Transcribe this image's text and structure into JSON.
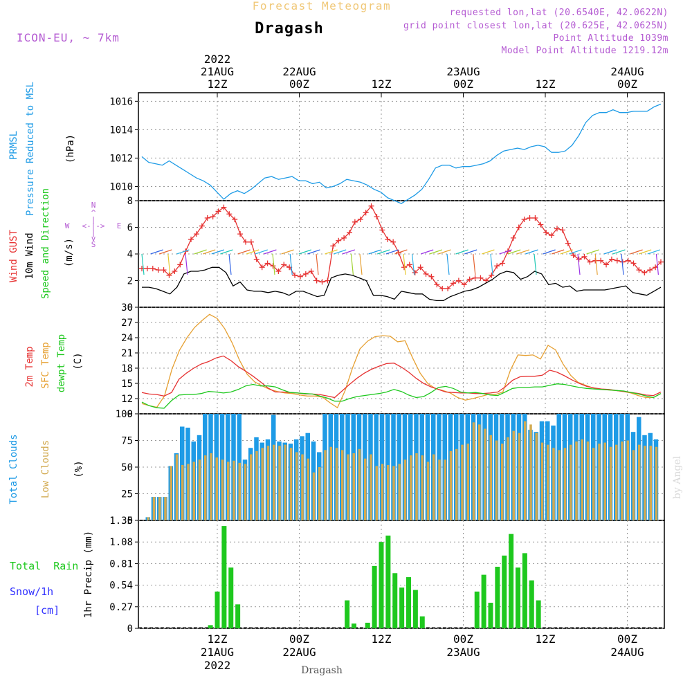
{
  "header": {
    "product": "Forecast Meteogram",
    "location": "Dragash",
    "model": "ICON-EU, ~ 7km",
    "requested": "requested lon,lat (20.6540E, 42.0622N)",
    "grid": "grid point closest lon,lat (20.625E, 42.0625N)",
    "alt": "Point Altitude 1039m",
    "model_alt": "Model Point Altitude 1219.12m",
    "watermark": "by Angel",
    "footer": "Dragash"
  },
  "time_axis": {
    "top_labels": [
      {
        "l1": "2022",
        "l2": "21AUG",
        "l3": "12Z"
      },
      {
        "l1": "",
        "l2": "22AUG",
        "l3": "00Z"
      },
      {
        "l1": "",
        "l2": "",
        "l3": "12Z"
      },
      {
        "l1": "",
        "l2": "23AUG",
        "l3": "00Z"
      },
      {
        "l1": "",
        "l2": "",
        "l3": "12Z"
      },
      {
        "l1": "",
        "l2": "24AUG",
        "l3": "00Z"
      }
    ],
    "bottom_labels": [
      {
        "l1": "12Z",
        "l2": "21AUG",
        "l3": "2022"
      },
      {
        "l1": "00Z",
        "l2": "22AUG",
        "l3": ""
      },
      {
        "l1": "12Z",
        "l2": "",
        "l3": ""
      },
      {
        "l1": "00Z",
        "l2": "23AUG",
        "l3": ""
      },
      {
        "l1": "12Z",
        "l2": "",
        "l3": ""
      },
      {
        "l1": "00Z",
        "l2": "24AUG",
        "l3": ""
      }
    ]
  },
  "panels": {
    "pressure": {
      "label1": "PRMSL",
      "label2": "Pressure Reduced to MSL",
      "unit": "(hPa)"
    },
    "wind": {
      "label_gust": "Wind GUST",
      "label_wind": "10m Wind",
      "label_dir": "Speed and Direction",
      "unit": "(m/s)"
    },
    "compass": {
      "n": "N",
      "s": "S",
      "w": "W",
      "e": "E"
    },
    "temp": {
      "label_2m": "2m Temp",
      "label_sfc": "SFC Temp",
      "label_dew": "dewpt Temp",
      "unit": "(C)"
    },
    "clouds": {
      "label_total": "Total Clouds",
      "label_low": "Low Clouds",
      "unit": "(%)"
    },
    "precip": {
      "label_rain": "Total  Rain",
      "label_snow": "Snow/1h",
      "label_cm": "[cm]",
      "unit": "1hr Precip (mm)"
    }
  },
  "colors": {
    "pressure": "#1e9be6",
    "gust": "#e63232",
    "wind": "#000000",
    "temp2m": "#e63232",
    "sfc": "#e6a032",
    "dew": "#1ec81e",
    "total_cloud": "#1e9be6",
    "low_cloud": "#d2aa50",
    "rain": "#1ec81e",
    "snow": "#3232ff",
    "meta": "#b45ad2"
  },
  "chart_data": [
    {
      "type": "line",
      "title": "PRMSL Pressure Reduced to MSL",
      "ylabel": "(hPa)",
      "ylim": [
        1009,
        1016.6
      ],
      "yticks": [
        1010,
        1012,
        1014,
        1016
      ],
      "x_start_hours": 0,
      "x_end_hours": 64,
      "series": [
        {
          "values": [
            1012.1,
            1011.7,
            1011.6,
            1011.5,
            1011.8,
            1011.5,
            1011.2,
            1010.9,
            1010.6,
            1010.4,
            1010.1,
            1009.6,
            1009.1,
            1009.5,
            1009.7,
            1009.5,
            1009.8,
            1010.2,
            1010.6,
            1010.7,
            1010.5,
            1010.6,
            1010.7,
            1010.4,
            1010.4,
            1010.2,
            1010.3,
            1009.9,
            1010.0,
            1010.2,
            1010.5,
            1010.4,
            1010.3,
            1010.1,
            1009.8,
            1009.6,
            1009.2,
            1009.0,
            1008.8,
            1009.1,
            1009.4,
            1009.8,
            1010.5,
            1011.3,
            1011.5,
            1011.5,
            1011.3,
            1011.4,
            1011.4,
            1011.5,
            1011.6,
            1011.8,
            1012.2,
            1012.5,
            1012.6,
            1012.7,
            1012.6,
            1012.8,
            1012.9,
            1012.8,
            1012.4,
            1012.4,
            1012.5,
            1012.9,
            1013.6,
            1014.5,
            1015.0,
            1015.2,
            1015.2,
            1015.4,
            1015.2,
            1015.2,
            1015.3,
            1015.3,
            1015.3,
            1015.6,
            1015.8
          ]
        }
      ]
    },
    {
      "type": "line",
      "title": "Wind GUST / 10m Wind Speed and Direction",
      "ylabel": "(m/s)",
      "ylim": [
        0,
        8
      ],
      "yticks": [
        0,
        2,
        4,
        6,
        8
      ],
      "x_start_hours": 0,
      "x_end_hours": 64,
      "series": [
        {
          "name": "Wind GUST",
          "values": [
            2.9,
            2.9,
            2.9,
            2.8,
            2.8,
            2.4,
            2.7,
            3.2,
            4.2,
            5.1,
            5.5,
            6.1,
            6.7,
            6.8,
            7.2,
            7.5,
            7.0,
            6.6,
            5.5,
            4.9,
            4.9,
            3.6,
            3.0,
            3.3,
            3.1,
            2.7,
            3.2,
            3.0,
            2.4,
            2.3,
            2.5,
            2.7,
            2.0,
            1.9,
            2.0,
            4.6,
            5.0,
            5.2,
            5.6,
            6.4,
            6.6,
            7.1,
            7.6,
            6.8,
            5.8,
            5.1,
            4.9,
            4.1,
            3.0,
            3.2,
            2.6,
            3.0,
            2.5,
            2.3,
            1.7,
            1.4,
            1.4,
            1.8,
            2.0,
            1.7,
            2.1,
            2.2,
            2.2,
            2.0,
            2.4,
            3.1,
            3.3,
            4.2,
            5.2,
            6.0,
            6.6,
            6.7,
            6.7,
            6.2,
            5.6,
            5.4,
            5.9,
            5.8,
            4.8,
            3.9,
            3.6,
            3.8,
            3.4,
            3.5,
            3.5,
            3.2,
            3.6,
            3.5,
            3.4,
            3.5,
            3.3,
            2.8,
            2.6,
            2.8,
            3.0,
            3.4
          ]
        },
        {
          "name": "10m Wind",
          "values": [
            1.5,
            1.5,
            1.4,
            1.2,
            1.0,
            1.5,
            2.5,
            2.7,
            2.7,
            2.8,
            3.0,
            3.0,
            2.6,
            1.6,
            1.9,
            1.3,
            1.2,
            1.2,
            1.1,
            1.2,
            1.1,
            0.9,
            1.2,
            1.2,
            1.0,
            0.8,
            0.9,
            2.2,
            2.4,
            2.5,
            2.4,
            2.2,
            2.0,
            0.9,
            0.9,
            0.8,
            0.6,
            1.2,
            1.1,
            1.0,
            1.0,
            0.6,
            0.5,
            0.5,
            0.8,
            1.0,
            1.2,
            1.3,
            1.5,
            1.8,
            2.1,
            2.5,
            2.7,
            2.6,
            2.1,
            2.3,
            2.7,
            2.5,
            1.7,
            1.8,
            1.5,
            1.6,
            1.2,
            1.3,
            1.3,
            1.3,
            1.3,
            1.4,
            1.5,
            1.6,
            1.1,
            1.0,
            0.9,
            1.2,
            1.5
          ]
        }
      ]
    },
    {
      "type": "line",
      "title": "2m Temp / SFC Temp / dewpt Temp",
      "ylabel": "(C)",
      "ylim": [
        9,
        30
      ],
      "yticks": [
        9,
        12,
        15,
        18,
        21,
        24,
        27,
        30
      ],
      "x_start_hours": 0,
      "x_end_hours": 64,
      "series": [
        {
          "name": "2m Temp",
          "values": [
            13.2,
            12.9,
            12.8,
            12.5,
            13.2,
            15.8,
            17.0,
            18.0,
            18.8,
            19.3,
            20.0,
            20.4,
            19.5,
            18.3,
            17.4,
            16.4,
            15.3,
            14.1,
            13.3,
            13.3,
            13.2,
            13.1,
            12.9,
            12.9,
            12.8,
            12.5,
            12.2,
            13.5,
            14.8,
            16.0,
            17.0,
            17.8,
            18.4,
            18.9,
            19.0,
            18.2,
            17.2,
            16.0,
            15.0,
            14.3,
            13.8,
            13.3,
            13.2,
            13.1,
            13.1,
            13.0,
            13.0,
            13.1,
            13.3,
            14.3,
            15.6,
            16.3,
            16.4,
            16.4,
            16.6,
            17.6,
            17.2,
            16.5,
            15.7,
            15.0,
            14.4,
            14.1,
            13.9,
            13.8,
            13.6,
            13.4,
            13.2,
            13.0,
            12.7,
            12.6,
            13.3
          ]
        },
        {
          "name": "SFC Temp",
          "values": [
            11.0,
            10.6,
            10.3,
            12.5,
            17.8,
            21.5,
            24.0,
            26.0,
            27.4,
            28.6,
            27.8,
            25.8,
            23.0,
            19.5,
            16.8,
            15.3,
            14.5,
            13.8,
            13.4,
            13.1,
            13.0,
            12.7,
            12.5,
            12.5,
            12.3,
            11.2,
            10.2,
            13.5,
            18.0,
            21.8,
            23.3,
            24.2,
            24.4,
            24.3,
            23.2,
            23.4,
            20.0,
            17.0,
            15.0,
            14.0,
            13.6,
            13.1,
            12.2,
            11.7,
            12.0,
            12.4,
            12.8,
            12.8,
            13.3,
            17.6,
            20.6,
            20.5,
            20.6,
            19.8,
            22.5,
            21.6,
            18.8,
            16.6,
            15.2,
            14.6,
            14.1,
            13.8,
            13.7,
            13.6,
            13.4,
            13.1,
            12.6,
            12.2,
            12.2,
            13.0
          ]
        },
        {
          "name": "dewpt Temp",
          "values": [
            11.3,
            10.6,
            10.2,
            10.1,
            11.6,
            12.7,
            12.8,
            12.8,
            13.0,
            13.4,
            13.3,
            13.1,
            13.3,
            13.8,
            14.5,
            14.8,
            14.5,
            14.5,
            14.3,
            13.7,
            13.2,
            13.1,
            13.0,
            12.9,
            12.5,
            12.1,
            11.5,
            11.5,
            12.0,
            12.4,
            12.6,
            12.8,
            13.0,
            13.3,
            13.8,
            13.4,
            12.7,
            12.2,
            12.4,
            13.2,
            14.2,
            14.4,
            14.0,
            13.3,
            13.1,
            13.2,
            13.0,
            12.7,
            12.6,
            13.3,
            14.0,
            14.2,
            14.2,
            14.3,
            14.3,
            14.6,
            14.9,
            14.8,
            14.5,
            14.2,
            14.0,
            13.9,
            13.8,
            13.7,
            13.6,
            13.5,
            13.2,
            12.9,
            12.5,
            12.2,
            13.0
          ]
        }
      ]
    },
    {
      "type": "bar",
      "title": "Total Clouds / Low Clouds",
      "ylabel": "(%)",
      "ylim": [
        0,
        100
      ],
      "yticks": [
        0,
        25,
        50,
        75,
        100
      ],
      "x_start_hours": 1,
      "x_step_hours": 1,
      "series": [
        {
          "name": "Total Clouds",
          "values": [
            3,
            22,
            22,
            22,
            51,
            63,
            88,
            87,
            74,
            80,
            100,
            100,
            100,
            100,
            100,
            100,
            100,
            57,
            68,
            78,
            73,
            76,
            99,
            74,
            73,
            72,
            76,
            79,
            82,
            74,
            64,
            100,
            100,
            100,
            100,
            100,
            100,
            100,
            100,
            100,
            100,
            100,
            100,
            100,
            100,
            100,
            100,
            100,
            100,
            100,
            100,
            100,
            100,
            100,
            100,
            100,
            100,
            100,
            100,
            100,
            100,
            100,
            100,
            100,
            100,
            100,
            100,
            85,
            83,
            93,
            93,
            89,
            100,
            100,
            100,
            100,
            100,
            100,
            100,
            100,
            100,
            100,
            100,
            100,
            100,
            83,
            97,
            80,
            82,
            76,
            87,
            72
          ]
        },
        {
          "name": "Low Clouds",
          "values": [
            3,
            22,
            22,
            22,
            51,
            62,
            52,
            53,
            55,
            57,
            61,
            63,
            59,
            57,
            55,
            56,
            54,
            53,
            62,
            65,
            68,
            70,
            71,
            70,
            71,
            68,
            64,
            62,
            58,
            45,
            50,
            66,
            69,
            68,
            66,
            62,
            63,
            67,
            58,
            62,
            51,
            53,
            52,
            51,
            53,
            57,
            61,
            63,
            61,
            55,
            62,
            57,
            57,
            65,
            67,
            71,
            72,
            92,
            90,
            86,
            80,
            75,
            72,
            78,
            84,
            82,
            93,
            90,
            82,
            73,
            71,
            68,
            66,
            68,
            71,
            74,
            76,
            74,
            68,
            72,
            73,
            69,
            71,
            74,
            75,
            66,
            71,
            70,
            70,
            69,
            70,
            71
          ]
        }
      ]
    },
    {
      "type": "bar",
      "title": "1hr Precip",
      "ylabel": "1hr Precip (mm)",
      "ylim": [
        0,
        1.35
      ],
      "yticks": [
        0,
        0.27,
        0.54,
        0.81,
        1.08,
        1.35
      ],
      "series": [
        {
          "name": "Total Rain",
          "points": [
            [
              11,
              0.04
            ],
            [
              12,
              0.46
            ],
            [
              13,
              1.28
            ],
            [
              14,
              0.76
            ],
            [
              15,
              0.3
            ],
            [
              31,
              0.35
            ],
            [
              32,
              0.06
            ],
            [
              34,
              0.07
            ],
            [
              35,
              0.78
            ],
            [
              36,
              1.08
            ],
            [
              37,
              1.16
            ],
            [
              38,
              0.69
            ],
            [
              39,
              0.51
            ],
            [
              40,
              0.64
            ],
            [
              41,
              0.48
            ],
            [
              42,
              0.15
            ],
            [
              50,
              0.46
            ],
            [
              51,
              0.67
            ],
            [
              52,
              0.32
            ],
            [
              53,
              0.77
            ],
            [
              54,
              0.91
            ],
            [
              55,
              1.18
            ],
            [
              56,
              0.76
            ],
            [
              57,
              0.94
            ],
            [
              58,
              0.6
            ],
            [
              59,
              0.35
            ]
          ]
        }
      ]
    }
  ]
}
